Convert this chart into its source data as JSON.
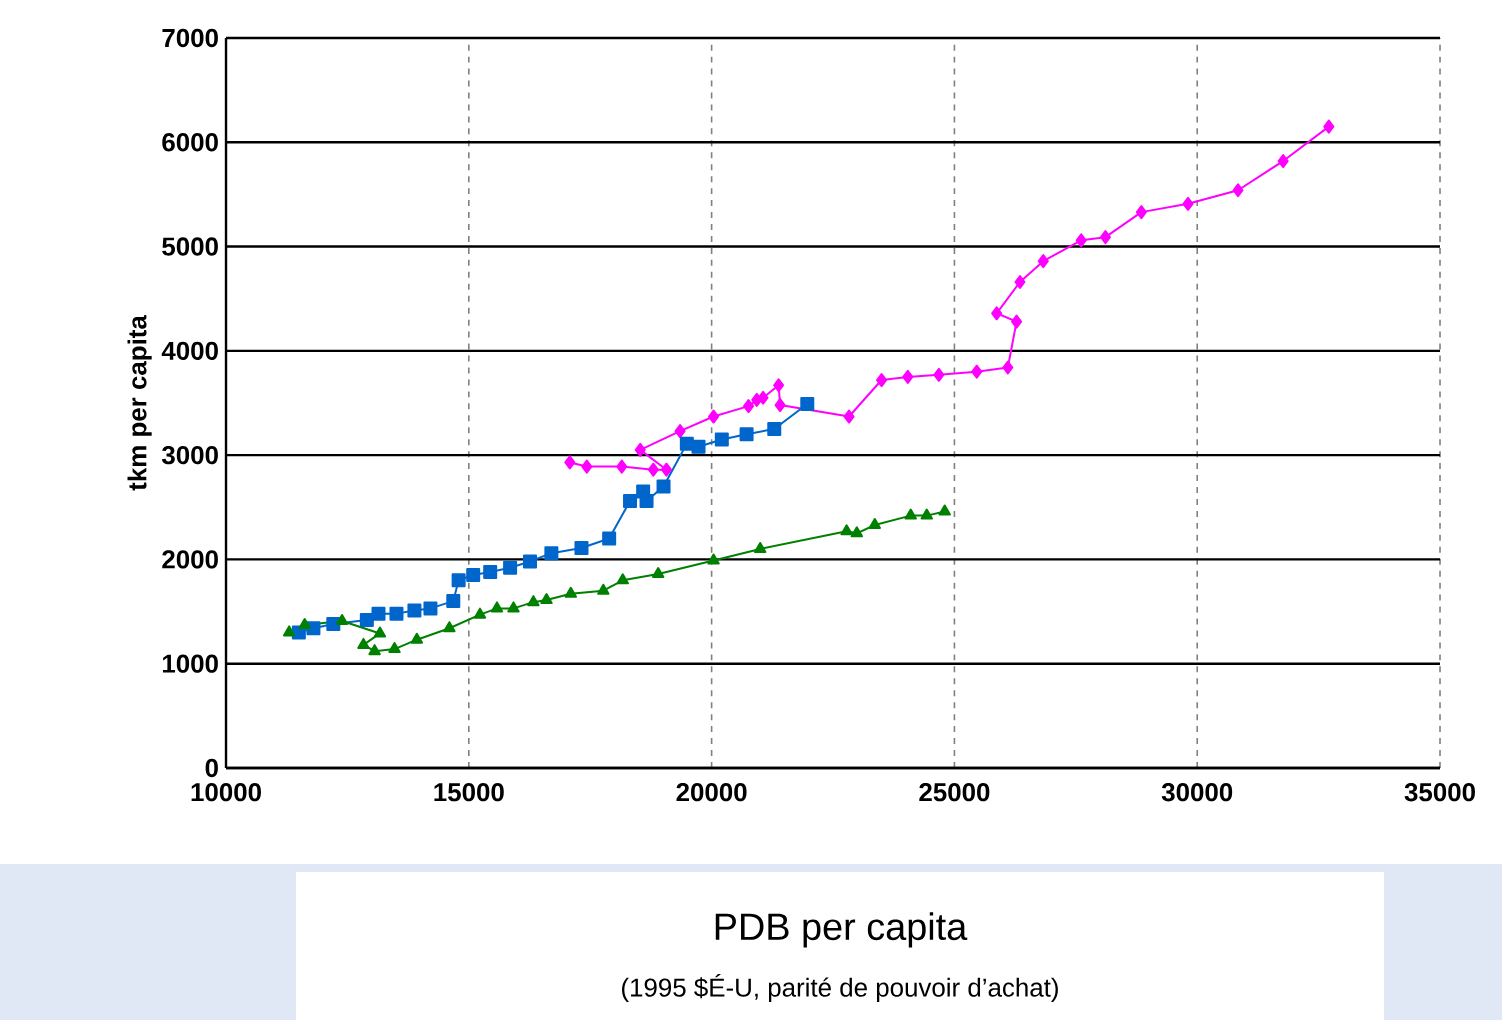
{
  "chart_data": {
    "type": "line",
    "xlabel": "PDB per capita",
    "ylabel": "tkm per capita",
    "annotations": [
      "(1995 $É-U, parité de pouvoir d’achat)"
    ],
    "xlim": [
      10000,
      35000
    ],
    "xticks": [
      10000,
      15000,
      20000,
      25000,
      30000,
      35000
    ],
    "ylim": [
      0,
      7000
    ],
    "yticks": [
      0,
      1000,
      2000,
      3000,
      4000,
      5000,
      6000,
      7000
    ],
    "grid": true,
    "series": [
      {
        "color": "#ff00ff",
        "marker": "diamond",
        "x": [
          17080,
          17430,
          18150,
          18800,
          19070,
          18530,
          19350,
          20040,
          20760,
          20930,
          21060,
          21380,
          21410,
          22830,
          23500,
          24040,
          24680,
          25460,
          26100,
          26280,
          25870,
          26350,
          26830,
          27610,
          28110,
          28850,
          29810,
          30840,
          31770,
          32710
        ],
        "values": [
          2930,
          2890,
          2890,
          2860,
          2860,
          3050,
          3230,
          3370,
          3470,
          3530,
          3550,
          3670,
          3480,
          3370,
          3720,
          3750,
          3770,
          3800,
          3840,
          4280,
          4360,
          4660,
          4860,
          5060,
          5090,
          5330,
          5410,
          5540,
          5820,
          6150
        ]
      },
      {
        "color": "#0066cc",
        "marker": "square",
        "x": [
          11500,
          11800,
          12210,
          12900,
          13140,
          13510,
          13880,
          14210,
          14680,
          14790,
          15090,
          15440,
          15850,
          16260,
          16700,
          17320,
          17890,
          18320,
          18590,
          18660,
          19010,
          19490,
          19730,
          20210,
          20720,
          21290,
          21970
        ],
        "values": [
          1300,
          1340,
          1380,
          1420,
          1480,
          1480,
          1510,
          1530,
          1600,
          1800,
          1850,
          1880,
          1920,
          1980,
          2060,
          2110,
          2200,
          2560,
          2650,
          2560,
          2700,
          3110,
          3080,
          3150,
          3200,
          3250,
          3490
        ]
      },
      {
        "color": "#008000",
        "marker": "triangle",
        "x": [
          11300,
          11620,
          12390,
          13170,
          12830,
          13060,
          13470,
          13930,
          14600,
          15230,
          15580,
          15920,
          16330,
          16600,
          17100,
          17770,
          18170,
          18900,
          20040,
          21000,
          22780,
          22990,
          23360,
          24100,
          24430,
          24800
        ],
        "values": [
          1300,
          1370,
          1410,
          1290,
          1180,
          1120,
          1140,
          1230,
          1340,
          1470,
          1530,
          1530,
          1590,
          1610,
          1670,
          1700,
          1800,
          1860,
          1990,
          2100,
          2270,
          2250,
          2330,
          2420,
          2420,
          2460
        ]
      }
    ]
  }
}
